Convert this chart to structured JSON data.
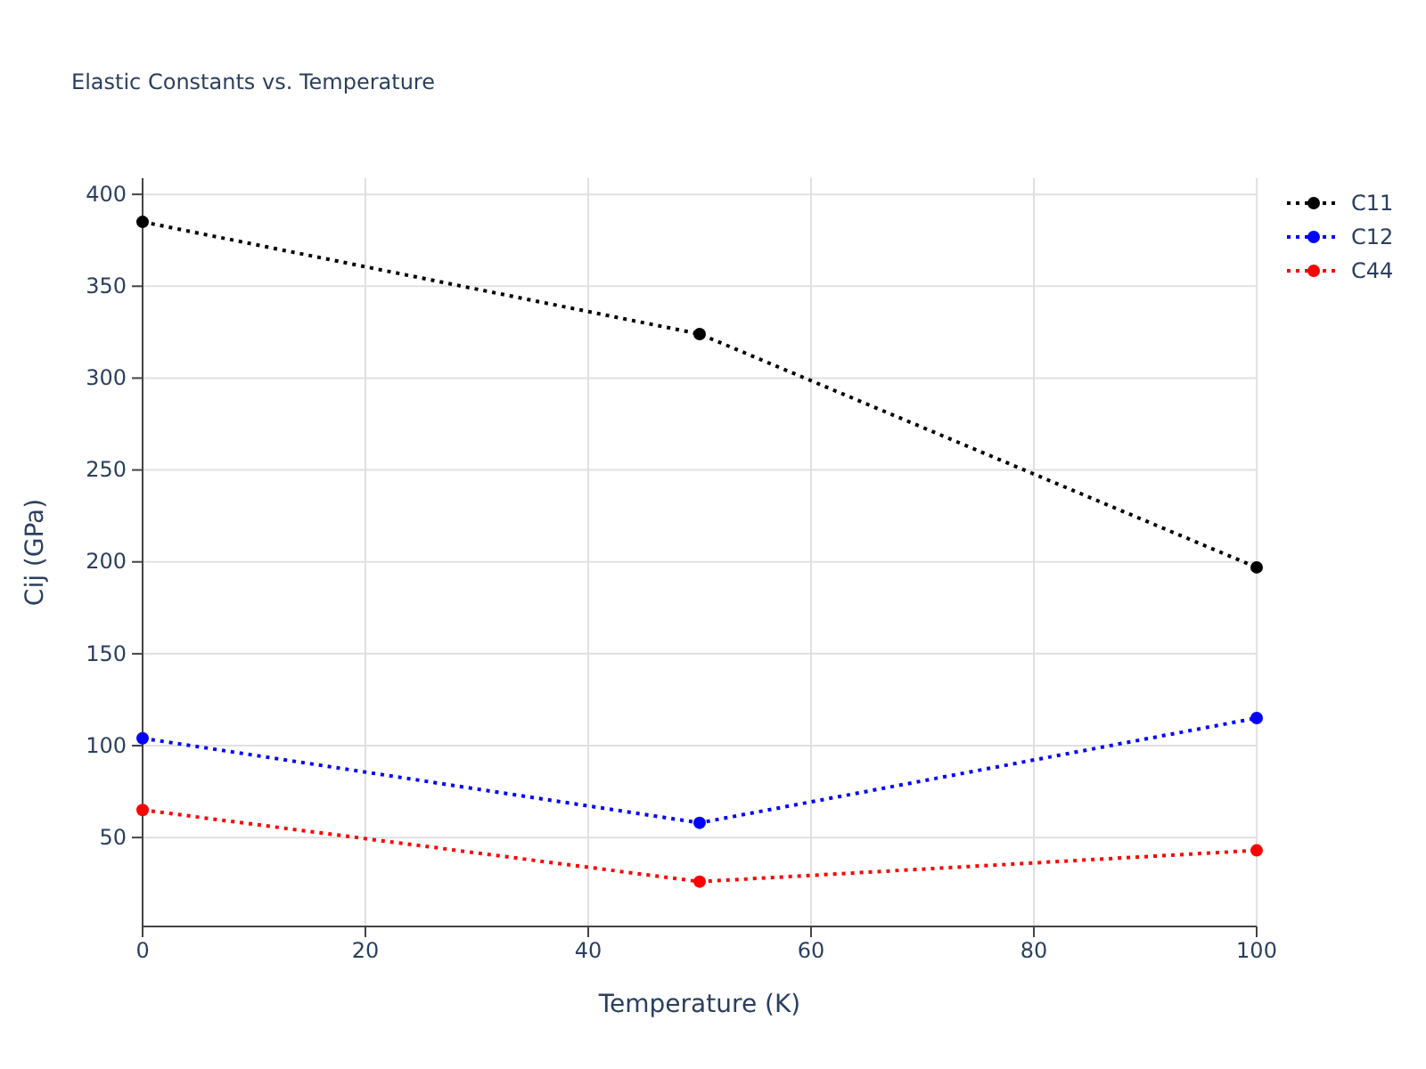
{
  "chart_data": {
    "type": "line",
    "title": "Elastic Constants vs. Temperature",
    "xlabel": "Temperature (K)",
    "ylabel": "Cij (GPa)",
    "x": [
      0,
      50,
      100
    ],
    "series": [
      {
        "name": "C11",
        "color": "#000000",
        "values": [
          385,
          324,
          197
        ]
      },
      {
        "name": "C12",
        "color": "#0000ff",
        "values": [
          104,
          58,
          115
        ]
      },
      {
        "name": "C44",
        "color": "#ff0000",
        "values": [
          65,
          26,
          43
        ]
      }
    ],
    "xlim": [
      0,
      100
    ],
    "xticks": [
      0,
      20,
      40,
      60,
      80,
      100
    ],
    "ylim": [
      1.6,
      408.8
    ],
    "yticks": [
      50,
      100,
      150,
      200,
      250,
      300,
      350,
      400
    ],
    "grid": true,
    "legend": "top right",
    "marker": "circle",
    "line_style": "dotted"
  }
}
